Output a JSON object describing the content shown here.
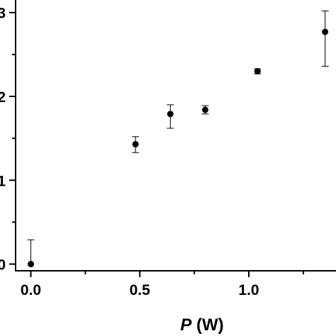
{
  "chart_data": {
    "type": "scatter",
    "title": "",
    "xlabel": {
      "symbol": "P",
      "unit": " (W)"
    },
    "ylabel": "",
    "xlim": [
      -0.07,
      1.4
    ],
    "ylim": [
      -0.08,
      3.15
    ],
    "x_ticks": [
      {
        "value": 0.0,
        "label": "0.0"
      },
      {
        "value": 0.5,
        "label": "0.5"
      },
      {
        "value": 1.0,
        "label": "1.0"
      }
    ],
    "x_minor_ticks": [
      0.25,
      0.75,
      1.25
    ],
    "y_ticks": [
      {
        "value": 0,
        "label": "0"
      },
      {
        "value": 1,
        "label": "1"
      },
      {
        "value": 2,
        "label": "2"
      },
      {
        "value": 3,
        "label": "3"
      }
    ],
    "y_minor_ticks": [
      0.5,
      1.5,
      2.5
    ],
    "grid": false,
    "legend": "none",
    "series": [
      {
        "marker": "filled-circle",
        "color": "#000000",
        "points": [
          {
            "x": 0.0,
            "y": 0.0,
            "err_low": 0.0,
            "err_high": 0.29
          },
          {
            "x": 0.48,
            "y": 1.43,
            "err_low": 0.1,
            "err_high": 0.09
          },
          {
            "x": 0.64,
            "y": 1.79,
            "err_low": 0.17,
            "err_high": 0.11
          },
          {
            "x": 0.8,
            "y": 1.84,
            "err_low": 0.05,
            "err_high": 0.05
          },
          {
            "x": 1.04,
            "y": 2.3,
            "err_low": 0.03,
            "err_high": 0.03
          },
          {
            "x": 1.35,
            "y": 2.77,
            "err_low": 0.41,
            "err_high": 0.25
          }
        ]
      }
    ]
  }
}
